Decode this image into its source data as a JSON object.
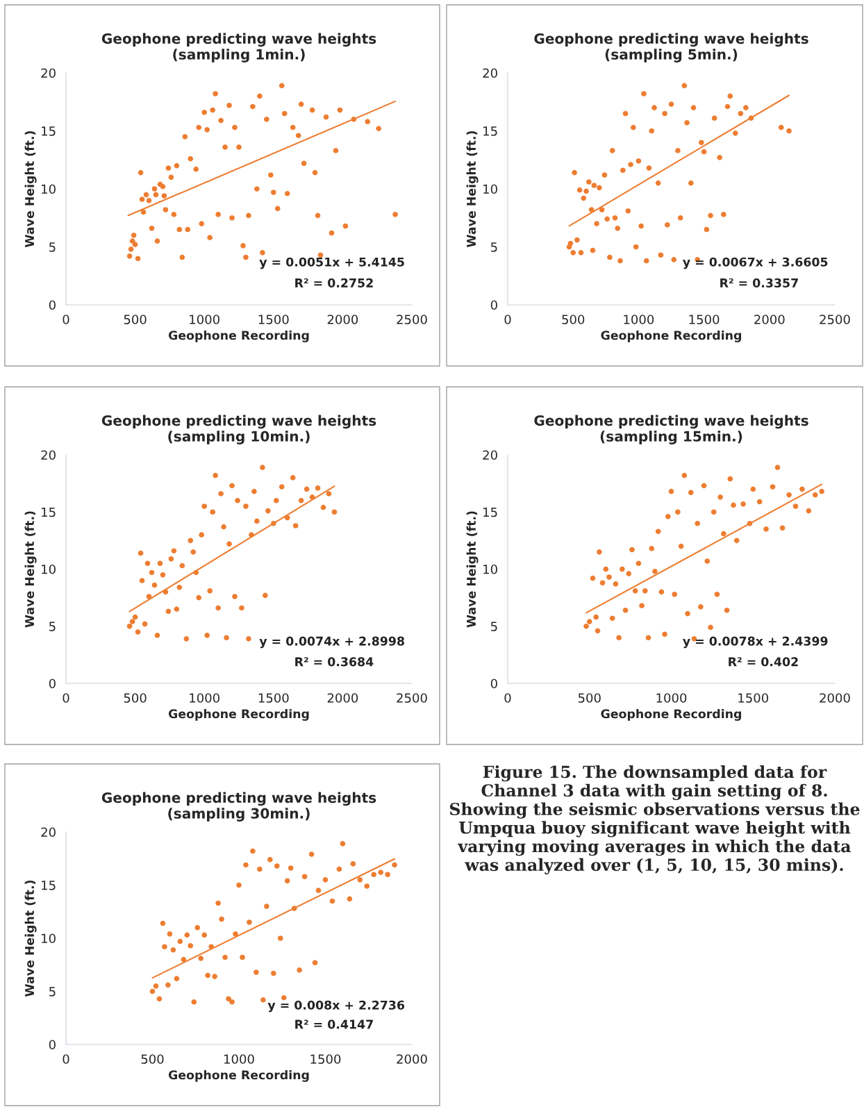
{
  "chart_data": [
    {
      "type": "scatter",
      "title": "Geophone predicting wave heights\n(sampling 1min.)",
      "xlabel": "Geophone Recording",
      "ylabel": "Wave Height (ft.)",
      "xlim": [
        0,
        2500
      ],
      "xticks": [
        0,
        500,
        1000,
        1500,
        2000,
        2500
      ],
      "ylim": [
        0,
        20
      ],
      "yticks": [
        0,
        5,
        10,
        15,
        20
      ],
      "grid": false,
      "annotations": [
        "y = 0.0051x + 5.4145",
        "R² = 0.2752"
      ],
      "series": [
        {
          "type": "scatter",
          "marker": "circle",
          "color": "#ed7d31",
          "x": [
            460,
            470,
            480,
            490,
            500,
            520,
            540,
            550,
            560,
            580,
            600,
            620,
            640,
            650,
            660,
            680,
            700,
            710,
            720,
            740,
            760,
            780,
            800,
            820,
            840,
            860,
            880,
            900,
            940,
            960,
            980,
            1000,
            1020,
            1040,
            1060,
            1080,
            1100,
            1120,
            1150,
            1180,
            1200,
            1220,
            1250,
            1280,
            1300,
            1320,
            1350,
            1380,
            1400,
            1420,
            1450,
            1480,
            1500,
            1530,
            1560,
            1580,
            1600,
            1640,
            1680,
            1700,
            1720,
            1780,
            1800,
            1820,
            1840,
            1880,
            1920,
            1950,
            1980,
            2020,
            2080,
            2180,
            2260,
            2380
          ],
          "values": [
            4.2,
            4.8,
            5.5,
            6.0,
            5.2,
            4.0,
            11.4,
            9.1,
            8.0,
            9.5,
            9.0,
            6.6,
            10.0,
            9.5,
            5.5,
            10.4,
            10.2,
            9.4,
            8.2,
            11.8,
            11.0,
            7.8,
            12.0,
            6.5,
            4.1,
            14.5,
            6.5,
            12.6,
            11.7,
            15.3,
            7.0,
            16.6,
            15.1,
            5.8,
            16.8,
            18.2,
            7.8,
            15.9,
            13.6,
            17.2,
            7.5,
            15.3,
            13.6,
            5.1,
            4.1,
            7.7,
            17.1,
            10.0,
            18.0,
            4.5,
            16.0,
            11.2,
            9.7,
            8.3,
            18.9,
            16.5,
            9.6,
            15.3,
            14.6,
            17.3,
            12.2,
            16.8,
            11.4,
            7.7,
            4.3,
            16.2,
            6.2,
            13.3,
            16.8,
            6.8,
            16.0,
            15.8,
            15.2,
            7.8
          ]
        },
        {
          "type": "line",
          "color": "#ed7d31",
          "x": [
            450,
            2380
          ],
          "values": [
            7.71,
            17.55
          ]
        }
      ]
    },
    {
      "type": "scatter",
      "title": "Geophone predicting wave heights\n(sampling 5min.)",
      "xlabel": "Geophone Recording",
      "ylabel": "Wave Height (ft.)",
      "xlim": [
        0,
        2500
      ],
      "xticks": [
        0,
        500,
        1000,
        1500,
        2000,
        2500
      ],
      "ylim": [
        0,
        20
      ],
      "yticks": [
        0,
        5,
        10,
        15,
        20
      ],
      "grid": false,
      "annotations": [
        "y = 0.0067x + 3.6605",
        "R² = 0.3357"
      ],
      "series": [
        {
          "type": "scatter",
          "marker": "circle",
          "color": "#ed7d31",
          "x": [
            470,
            480,
            500,
            510,
            530,
            550,
            560,
            580,
            600,
            620,
            640,
            650,
            660,
            680,
            700,
            720,
            740,
            760,
            780,
            800,
            820,
            840,
            860,
            880,
            900,
            920,
            940,
            960,
            980,
            1000,
            1020,
            1040,
            1060,
            1080,
            1100,
            1120,
            1150,
            1170,
            1200,
            1220,
            1250,
            1270,
            1300,
            1320,
            1350,
            1370,
            1400,
            1420,
            1450,
            1480,
            1500,
            1520,
            1550,
            1580,
            1620,
            1650,
            1680,
            1700,
            1740,
            1780,
            1820,
            1860,
            2090,
            2150
          ],
          "values": [
            5.0,
            5.3,
            4.5,
            11.4,
            5.6,
            9.9,
            4.5,
            9.2,
            9.8,
            10.6,
            8.2,
            4.7,
            10.3,
            7.0,
            10.1,
            8.2,
            11.2,
            7.4,
            4.1,
            13.3,
            7.5,
            6.6,
            3.8,
            11.6,
            16.5,
            8.1,
            12.1,
            15.3,
            5.0,
            12.4,
            6.8,
            18.2,
            3.8,
            11.8,
            15.0,
            17.0,
            10.5,
            4.3,
            16.5,
            6.9,
            17.3,
            3.9,
            13.3,
            7.5,
            18.9,
            15.7,
            10.5,
            17.0,
            3.9,
            14.0,
            13.2,
            6.5,
            7.7,
            16.1,
            12.7,
            7.8,
            17.1,
            18.0,
            14.8,
            16.5,
            17.0,
            16.1,
            15.3,
            15.0
          ]
        },
        {
          "type": "line",
          "color": "#ed7d31",
          "x": [
            470,
            2150
          ],
          "values": [
            6.81,
            18.07
          ]
        }
      ]
    },
    {
      "type": "scatter",
      "title": "Geophone predicting wave heights\n(sampling 10min.)",
      "xlabel": "Geophone Recording",
      "ylabel": "Wave Height (ft.)",
      "xlim": [
        0,
        2500
      ],
      "xticks": [
        0,
        500,
        1000,
        1500,
        2000,
        2500
      ],
      "ylim": [
        0,
        20
      ],
      "yticks": [
        0,
        5,
        10,
        15,
        20
      ],
      "grid": false,
      "annotations": [
        "y = 0.0074x + 2.8998",
        "R² = 0.3684"
      ],
      "series": [
        {
          "type": "scatter",
          "marker": "circle",
          "color": "#ed7d31",
          "x": [
            460,
            480,
            500,
            520,
            540,
            550,
            570,
            590,
            600,
            620,
            640,
            660,
            680,
            700,
            720,
            740,
            760,
            780,
            800,
            820,
            840,
            870,
            900,
            920,
            940,
            960,
            980,
            1000,
            1020,
            1040,
            1060,
            1080,
            1100,
            1120,
            1140,
            1160,
            1180,
            1200,
            1220,
            1240,
            1270,
            1300,
            1320,
            1340,
            1360,
            1380,
            1420,
            1440,
            1460,
            1500,
            1520,
            1560,
            1600,
            1640,
            1660,
            1700,
            1740,
            1780,
            1820,
            1860,
            1900,
            1940
          ],
          "values": [
            5.0,
            5.4,
            5.8,
            4.5,
            11.4,
            9.0,
            5.2,
            10.5,
            7.6,
            9.7,
            8.6,
            4.2,
            10.5,
            9.5,
            8.0,
            6.3,
            10.9,
            11.6,
            6.5,
            8.4,
            10.3,
            3.9,
            12.5,
            11.5,
            9.7,
            7.5,
            13.0,
            15.5,
            4.2,
            8.1,
            15.0,
            18.2,
            6.6,
            16.6,
            13.7,
            4.0,
            12.2,
            17.3,
            7.6,
            16.0,
            6.6,
            15.5,
            3.9,
            13.0,
            16.8,
            14.2,
            18.9,
            7.7,
            15.1,
            14.0,
            16.0,
            17.2,
            14.5,
            18.0,
            13.8,
            16.0,
            17.0,
            16.3,
            17.1,
            15.4,
            16.6,
            15.0
          ]
        },
        {
          "type": "line",
          "color": "#ed7d31",
          "x": [
            460,
            1940
          ],
          "values": [
            6.3,
            17.26
          ]
        }
      ]
    },
    {
      "type": "scatter",
      "title": "Geophone predicting wave heights\n(sampling 15min.)",
      "xlabel": "Geophone Recording",
      "ylabel": "Wave Height (ft.)",
      "xlim": [
        0,
        2000
      ],
      "xticks": [
        0,
        500,
        1000,
        1500,
        2000
      ],
      "ylim": [
        0,
        20
      ],
      "yticks": [
        0,
        5,
        10,
        15,
        20
      ],
      "grid": false,
      "annotations": [
        "y = 0.0078x + 2.4399",
        "R² = 0.402"
      ],
      "series": [
        {
          "type": "scatter",
          "marker": "circle",
          "color": "#ed7d31",
          "x": [
            480,
            500,
            520,
            540,
            550,
            560,
            580,
            600,
            620,
            640,
            660,
            680,
            700,
            720,
            740,
            760,
            780,
            800,
            820,
            840,
            860,
            880,
            900,
            920,
            940,
            960,
            980,
            1000,
            1020,
            1040,
            1060,
            1080,
            1100,
            1120,
            1140,
            1160,
            1180,
            1200,
            1220,
            1240,
            1260,
            1280,
            1300,
            1320,
            1340,
            1360,
            1380,
            1400,
            1440,
            1480,
            1500,
            1540,
            1580,
            1620,
            1650,
            1680,
            1720,
            1760,
            1800,
            1840,
            1880,
            1920
          ],
          "values": [
            5.0,
            5.4,
            9.2,
            5.8,
            4.6,
            11.5,
            8.8,
            10.0,
            9.3,
            5.7,
            8.7,
            4.0,
            10.0,
            6.4,
            9.6,
            11.7,
            8.1,
            10.5,
            6.8,
            8.1,
            4.0,
            11.8,
            9.8,
            13.3,
            8.0,
            4.3,
            14.6,
            16.8,
            7.8,
            15.0,
            12.0,
            18.2,
            6.1,
            16.7,
            3.9,
            14.0,
            6.7,
            17.3,
            10.7,
            4.9,
            15.0,
            7.8,
            16.3,
            13.1,
            6.4,
            17.9,
            15.6,
            12.5,
            15.7,
            14.0,
            17.0,
            15.9,
            13.5,
            17.2,
            18.9,
            13.6,
            16.5,
            15.5,
            17.0,
            15.1,
            16.5,
            16.8
          ]
        },
        {
          "type": "line",
          "color": "#ed7d31",
          "x": [
            480,
            1920
          ],
          "values": [
            6.18,
            17.42
          ]
        }
      ]
    },
    {
      "type": "scatter",
      "title": "Geophone predicting wave heights\n(sampling 30min.)",
      "xlabel": "Geophone Recording",
      "ylabel": "Wave Height (ft.)",
      "xlim": [
        0,
        2000
      ],
      "xticks": [
        0,
        500,
        1000,
        1500,
        2000
      ],
      "ylim": [
        0,
        20
      ],
      "yticks": [
        0,
        5,
        10,
        15,
        20
      ],
      "grid": false,
      "annotations": [
        "y = 0.008x + 2.2736",
        "R² = 0.4147"
      ],
      "series": [
        {
          "type": "scatter",
          "marker": "circle",
          "color": "#ed7d31",
          "x": [
            500,
            520,
            540,
            560,
            570,
            590,
            600,
            620,
            640,
            660,
            680,
            700,
            720,
            740,
            760,
            780,
            800,
            820,
            840,
            860,
            880,
            900,
            920,
            940,
            960,
            980,
            1000,
            1020,
            1040,
            1060,
            1080,
            1100,
            1120,
            1140,
            1160,
            1180,
            1200,
            1220,
            1240,
            1260,
            1280,
            1300,
            1320,
            1350,
            1380,
            1420,
            1440,
            1460,
            1500,
            1540,
            1580,
            1600,
            1640,
            1660,
            1700,
            1740,
            1780,
            1820,
            1860,
            1900
          ],
          "values": [
            5.0,
            5.5,
            4.3,
            11.4,
            9.2,
            5.6,
            10.4,
            8.9,
            6.2,
            9.7,
            8.0,
            10.3,
            9.3,
            4.0,
            11.0,
            8.1,
            10.3,
            6.5,
            9.2,
            6.4,
            13.3,
            11.8,
            8.2,
            4.3,
            4.0,
            10.4,
            15.0,
            8.2,
            16.9,
            11.5,
            18.2,
            6.8,
            16.5,
            4.2,
            13.0,
            17.4,
            6.7,
            16.8,
            10.0,
            4.4,
            15.4,
            16.6,
            12.8,
            7.0,
            15.8,
            17.9,
            7.7,
            14.5,
            15.5,
            13.5,
            16.5,
            18.9,
            13.7,
            17.0,
            15.5,
            14.9,
            16.0,
            16.2,
            16.0,
            16.9
          ]
        },
        {
          "type": "line",
          "color": "#ed7d31",
          "x": [
            500,
            1900
          ],
          "values": [
            6.27,
            17.47
          ]
        }
      ]
    },
    {
      "type": "other",
      "annotations": [
        "Figure 15. The downsampled data for Channel 3 data with gain setting of 8. Showing the seismic observations versus the Umpqua buoy significant wave height with varying moving averages in which the data was analyzed over (1, 5, 10, 15, 30 mins)."
      ]
    }
  ]
}
